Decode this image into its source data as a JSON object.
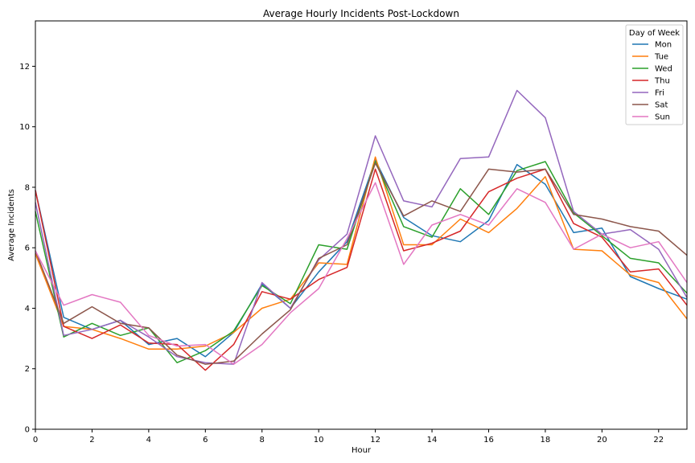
{
  "chart_data": {
    "type": "line",
    "title": "Average Hourly Incidents Post-Lockdown",
    "xlabel": "Hour",
    "ylabel": "Average Incidents",
    "xlim": [
      0,
      23
    ],
    "ylim": [
      0,
      13.5
    ],
    "x_ticks": [
      0,
      2,
      4,
      6,
      8,
      10,
      12,
      14,
      16,
      18,
      20,
      22
    ],
    "y_ticks": [
      0,
      2,
      4,
      6,
      8,
      10,
      12
    ],
    "grid": false,
    "legend_title": "Day of Week",
    "legend_position": "top-right",
    "x": [
      0,
      1,
      2,
      3,
      4,
      5,
      6,
      7,
      8,
      9,
      10,
      11,
      12,
      13,
      14,
      15,
      16,
      17,
      18,
      19,
      20,
      21,
      22,
      23
    ],
    "series": [
      {
        "name": "Mon",
        "color": "#1f77b4",
        "values": [
          7.9,
          3.7,
          3.3,
          3.6,
          2.8,
          3.0,
          2.4,
          3.2,
          4.8,
          4.0,
          5.2,
          6.2,
          8.9,
          7.0,
          6.4,
          6.2,
          6.9,
          8.75,
          8.1,
          6.5,
          6.65,
          5.05,
          4.65,
          4.3
        ]
      },
      {
        "name": "Tue",
        "color": "#ff7f0e",
        "values": [
          5.8,
          3.4,
          3.3,
          3.0,
          2.65,
          2.65,
          2.75,
          3.2,
          4.0,
          4.3,
          5.5,
          5.45,
          9.0,
          6.1,
          6.1,
          6.95,
          6.5,
          7.3,
          8.35,
          5.95,
          5.9,
          5.1,
          4.85,
          3.65
        ]
      },
      {
        "name": "Wed",
        "color": "#2ca02c",
        "values": [
          7.2,
          3.05,
          3.5,
          3.1,
          3.35,
          2.2,
          2.6,
          3.25,
          4.75,
          4.15,
          6.1,
          5.95,
          8.85,
          6.7,
          6.35,
          7.95,
          7.1,
          8.55,
          8.85,
          7.15,
          6.4,
          5.65,
          5.5,
          4.5
        ]
      },
      {
        "name": "Thu",
        "color": "#d62728",
        "values": [
          7.9,
          3.4,
          3.0,
          3.45,
          2.85,
          2.8,
          1.95,
          2.8,
          4.55,
          4.3,
          4.95,
          5.35,
          8.6,
          5.9,
          6.15,
          6.55,
          7.85,
          8.3,
          8.6,
          6.8,
          6.35,
          5.2,
          5.3,
          4.1
        ]
      },
      {
        "name": "Fri",
        "color": "#9467bd",
        "values": [
          7.5,
          3.1,
          3.3,
          3.6,
          3.05,
          2.4,
          2.2,
          2.15,
          4.85,
          4.0,
          5.6,
          6.45,
          9.7,
          7.55,
          7.35,
          8.95,
          9.0,
          11.2,
          10.3,
          7.2,
          6.45,
          6.6,
          5.95,
          4.35
        ]
      },
      {
        "name": "Sat",
        "color": "#8c564b",
        "values": [
          5.9,
          3.5,
          4.05,
          3.5,
          3.35,
          2.45,
          2.15,
          2.25,
          3.15,
          3.95,
          5.65,
          6.1,
          8.8,
          7.05,
          7.55,
          7.2,
          8.6,
          8.5,
          8.6,
          7.1,
          6.95,
          6.7,
          6.55,
          5.75
        ]
      },
      {
        "name": "Sun",
        "color": "#e377c2",
        "values": [
          5.9,
          4.1,
          4.45,
          4.2,
          3.1,
          2.75,
          2.8,
          2.15,
          2.8,
          3.85,
          4.65,
          6.3,
          8.15,
          5.45,
          6.75,
          7.1,
          6.75,
          7.95,
          7.5,
          5.95,
          6.45,
          6.0,
          6.2,
          4.85
        ]
      }
    ]
  }
}
